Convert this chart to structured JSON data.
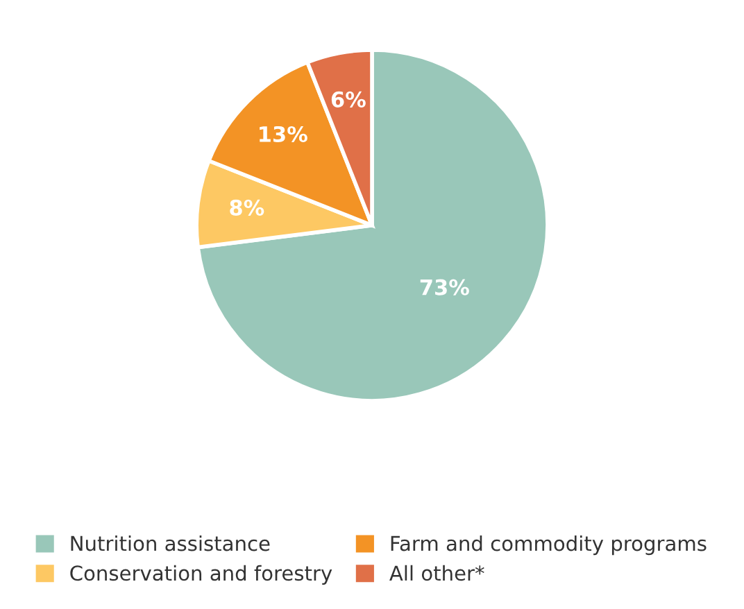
{
  "chart_data": {
    "type": "pie",
    "categories": [
      "Nutrition assistance",
      "Conservation and forestry",
      "Farm and commodity programs",
      "All other*"
    ],
    "values": [
      73,
      8,
      13,
      6
    ],
    "colors": [
      "#99c7b9",
      "#fdc863",
      "#f39325",
      "#e07048"
    ],
    "value_labels": [
      "73%",
      "8%",
      "13%",
      "6%"
    ],
    "legend": "bottom"
  }
}
